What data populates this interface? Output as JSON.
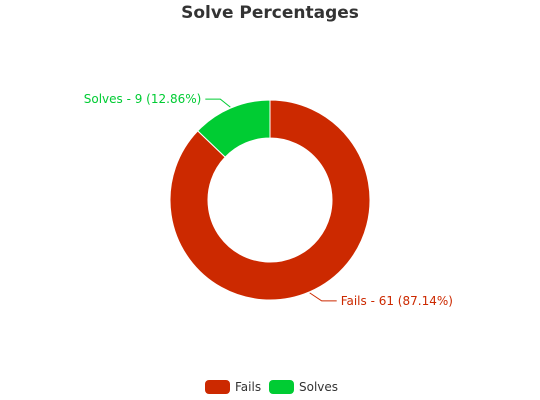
{
  "chart_data": {
    "type": "pie",
    "variant": "donut",
    "title": "Solve Percentages",
    "legend_position": "bottom-center",
    "series": [
      {
        "name": "Fails",
        "value": 61,
        "percent": "87.14%",
        "label": "Fails - 61 (87.14%)",
        "color": "#cc2900"
      },
      {
        "name": "Solves",
        "value": 9,
        "percent": "12.86%",
        "label": "Solves - 9 (12.86%)",
        "color": "#00cc33"
      }
    ]
  }
}
